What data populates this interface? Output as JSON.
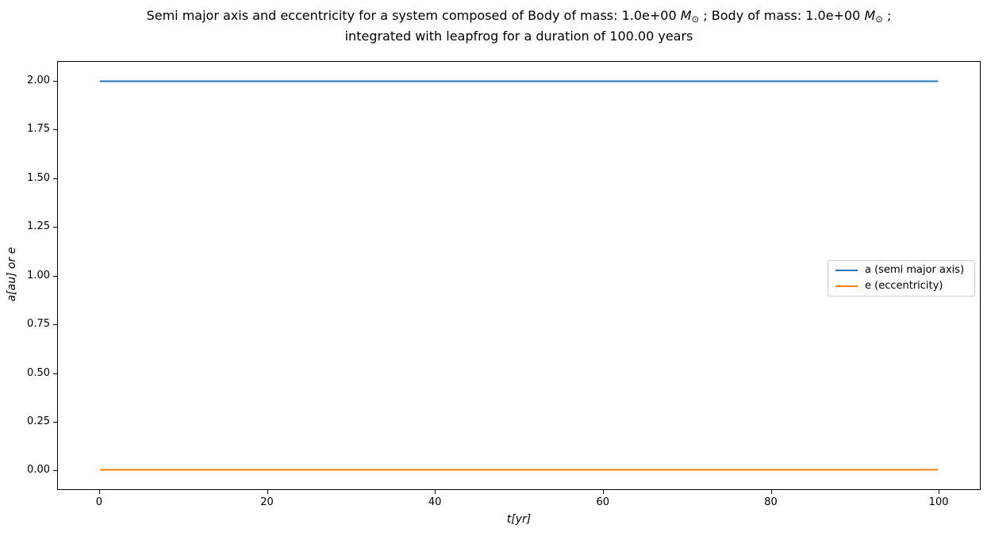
{
  "title": {
    "part1": "Semi major axis and eccentricity for a system composed of Body of mass: 1.0e+00 ",
    "m_symbol": "M",
    "sun_symbol": "⊙",
    "part2": " ; Body of mass: 1.0e+00 ",
    "part3": " ;",
    "line2": "integrated with leapfrog for a duration of 100.00 years"
  },
  "chart_data": {
    "type": "line",
    "title": "Semi major axis and eccentricity for a system composed of Body of mass: 1.0e+00 M⊙ ; Body of mass: 1.0e+00 M⊙ ;\nintegrated with leapfrog for a duration of 100.00 years",
    "xlabel": "t[yr]",
    "ylabel": "a[au] or e",
    "xlim": [
      -5,
      105
    ],
    "ylim": [
      -0.1,
      2.1
    ],
    "xticks": [
      "0",
      "20",
      "40",
      "60",
      "80",
      "100"
    ],
    "yticks": [
      "0.00",
      "0.25",
      "0.50",
      "0.75",
      "1.00",
      "1.25",
      "1.50",
      "1.75",
      "2.00"
    ],
    "grid": false,
    "legend_position": "center right",
    "series": [
      {
        "name": "a (semi major axis)",
        "color": "#1f77b4",
        "x": [
          0,
          100
        ],
        "y": [
          2.0,
          2.0
        ]
      },
      {
        "name": "e (eccentricity)",
        "color": "#ff7f0e",
        "x": [
          0,
          100
        ],
        "y": [
          0.0,
          0.0
        ]
      }
    ]
  }
}
